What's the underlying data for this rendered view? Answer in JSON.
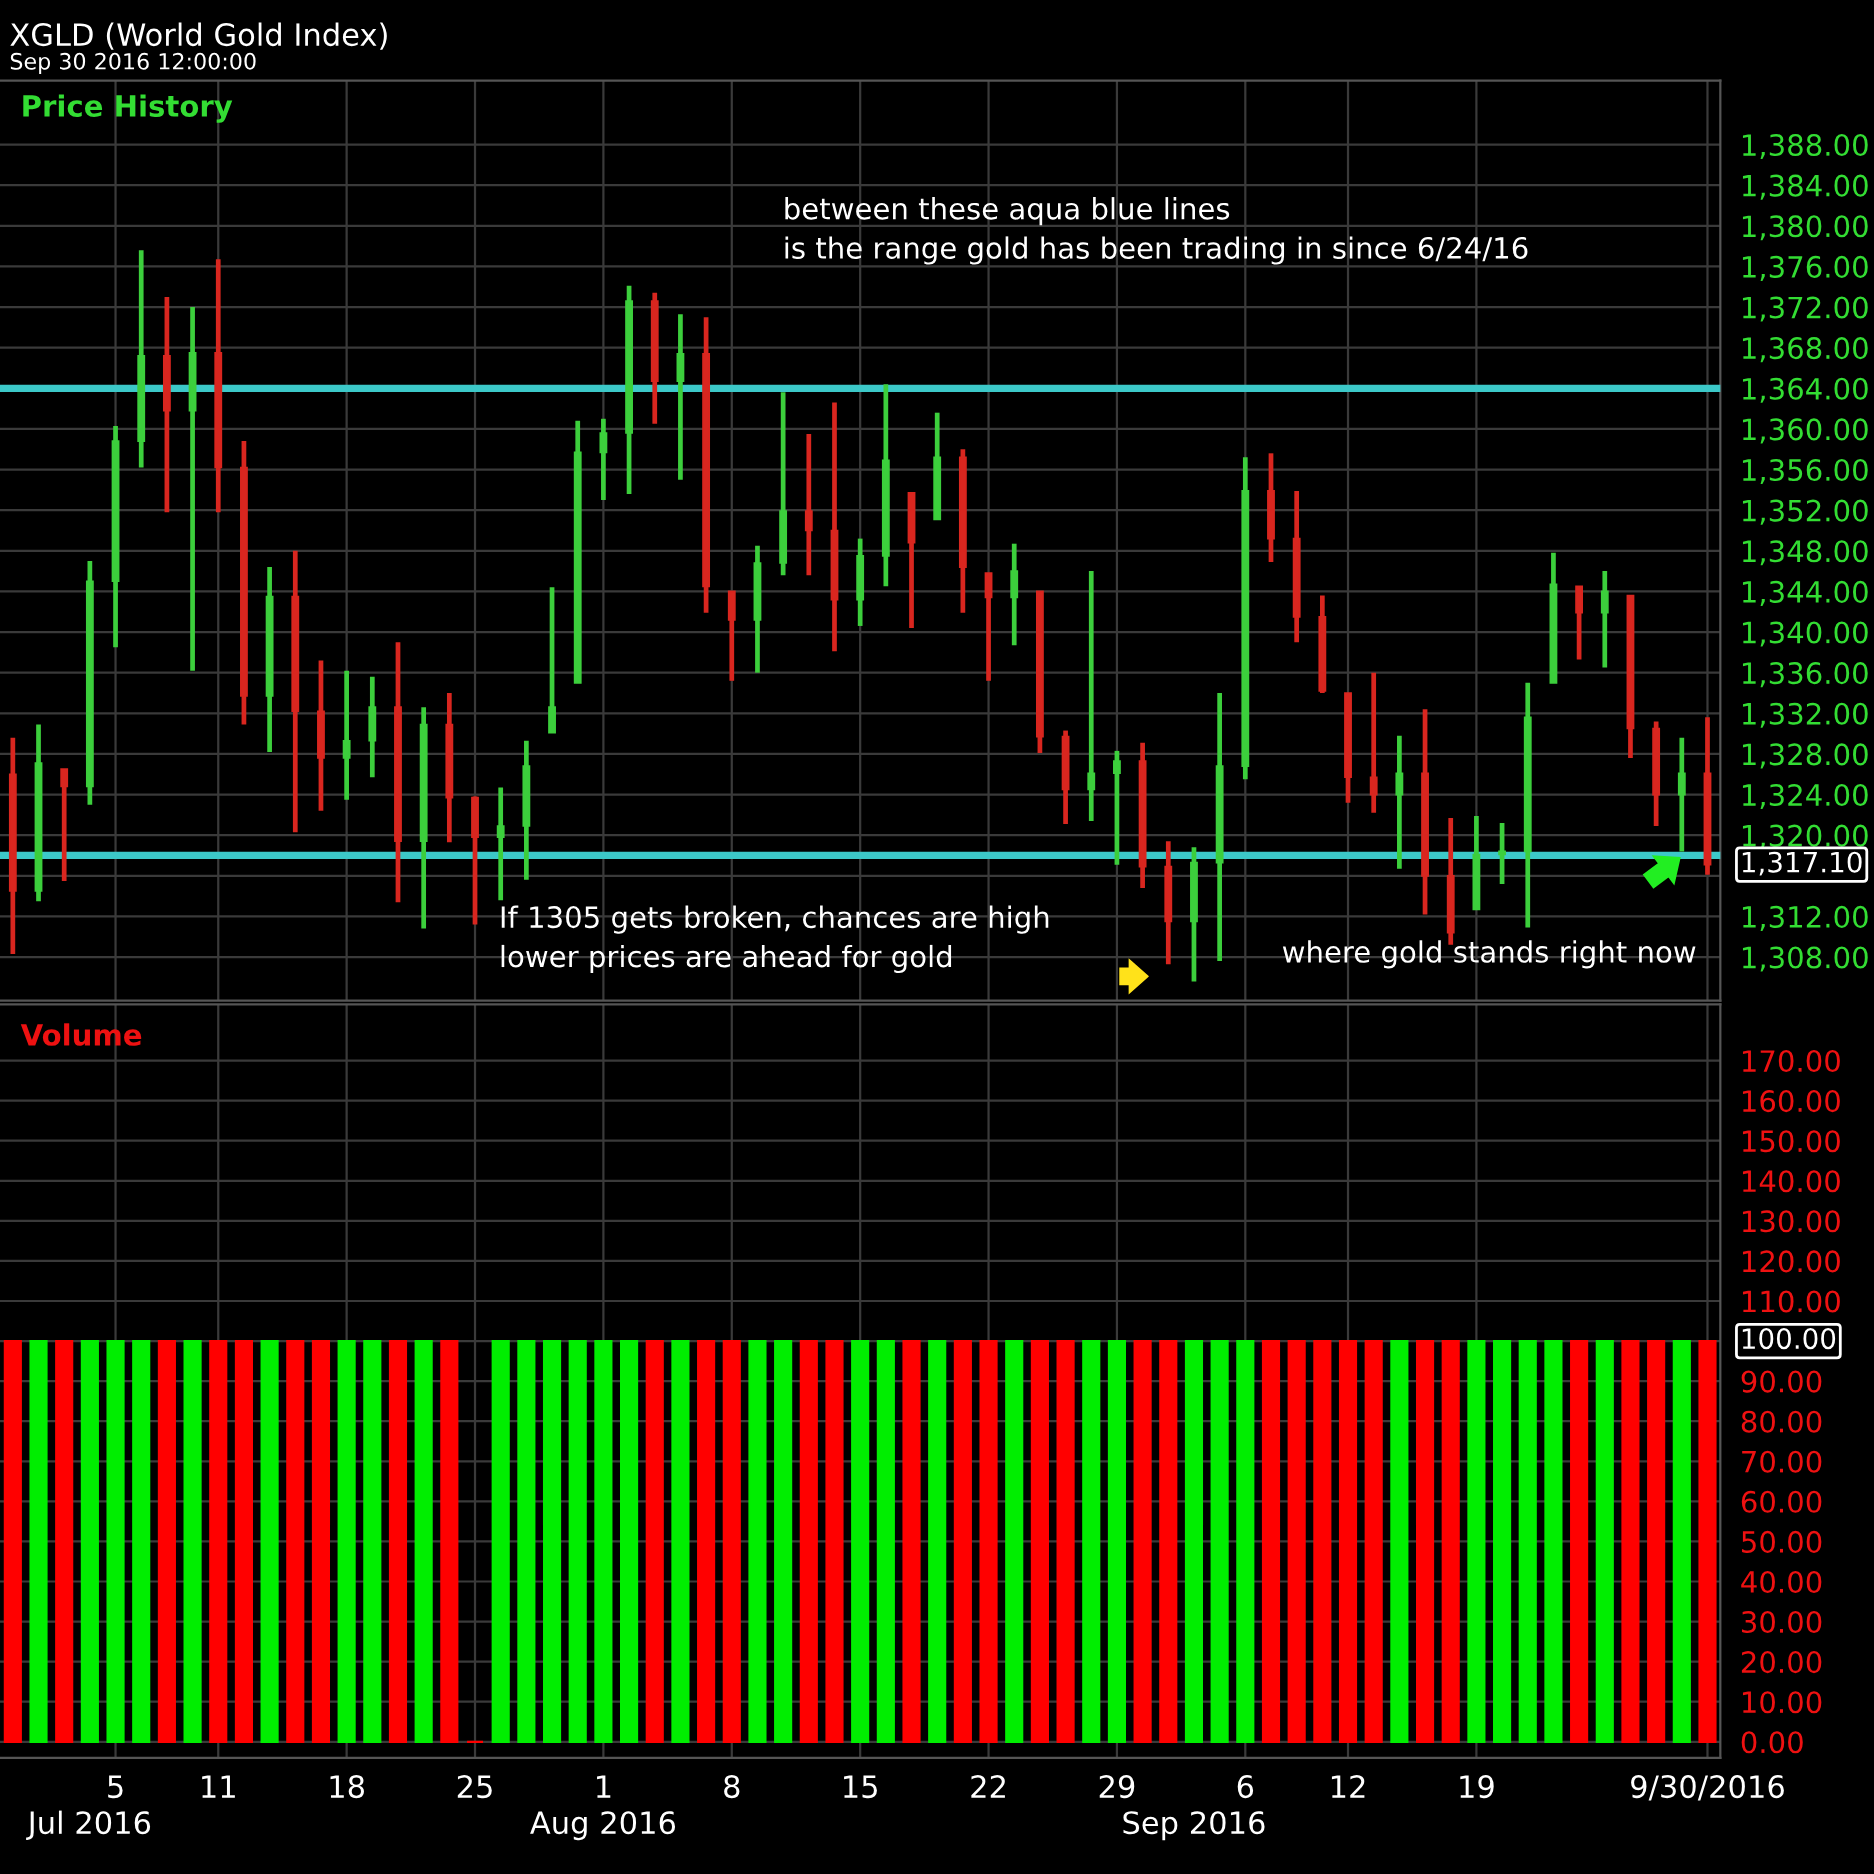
{
  "chart_data": [
    {
      "type": "candlestick",
      "title": "XGLD (World Gold Index)",
      "subtitle": "Sep 30 2016 12:00:00",
      "ylabel": "Price History",
      "categories": [
        null,
        null,
        null,
        null,
        null,
        null,
        null,
        null,
        null,
        null,
        null,
        null,
        null,
        null,
        null,
        null,
        null,
        null,
        null,
        null,
        null,
        null,
        null,
        null,
        null,
        null,
        null,
        null,
        null,
        null,
        null,
        null,
        null,
        null,
        null,
        null,
        null,
        null,
        null,
        null,
        null,
        null,
        null,
        null,
        null,
        null,
        null,
        null,
        null,
        null,
        null,
        null,
        null,
        null,
        null,
        null,
        null,
        null,
        null,
        null,
        null,
        null,
        null,
        null,
        null,
        null,
        null
      ],
      "ohlc": [
        [
          1326.0,
          1329.6,
          1308.3,
          1314.5
        ],
        [
          1314.5,
          1330.9,
          1313.5,
          1327.1
        ],
        [
          1326.5,
          1326.5,
          1315.5,
          1324.8
        ],
        [
          1324.8,
          1347.0,
          1323.0,
          1345.0
        ],
        [
          1345.0,
          1360.3,
          1338.5,
          1358.8
        ],
        [
          1358.8,
          1377.6,
          1356.2,
          1367.2
        ],
        [
          1367.2,
          1373.0,
          1351.8,
          1361.8
        ],
        [
          1361.8,
          1372.0,
          1336.2,
          1367.5
        ],
        [
          1367.5,
          1376.7,
          1351.8,
          1356.2
        ],
        [
          1356.2,
          1358.8,
          1330.9,
          1333.7
        ],
        [
          1333.7,
          1346.4,
          1328.2,
          1343.5
        ],
        [
          1343.5,
          1348.0,
          1320.3,
          1332.2
        ],
        [
          1332.2,
          1337.2,
          1322.4,
          1327.6
        ],
        [
          1327.6,
          1336.2,
          1323.5,
          1329.3
        ],
        [
          1329.3,
          1335.6,
          1325.7,
          1332.6
        ],
        [
          1332.6,
          1339.0,
          1313.4,
          1319.4
        ],
        [
          1319.4,
          1332.6,
          1310.8,
          1330.9
        ],
        [
          1330.9,
          1334.0,
          1319.3,
          1323.7
        ],
        [
          1323.7,
          1323.8,
          1311.2,
          1319.8
        ],
        [
          1319.8,
          1324.7,
          1313.6,
          1320.9
        ],
        [
          1320.9,
          1329.3,
          1315.6,
          1326.8
        ],
        [
          1330.1,
          1344.4,
          1330.1,
          1332.6
        ],
        [
          1335.0,
          1360.8,
          1335.0,
          1357.7
        ],
        [
          1357.7,
          1361.0,
          1353.0,
          1359.6
        ],
        [
          1359.6,
          1374.1,
          1353.6,
          1372.6
        ],
        [
          1372.6,
          1373.4,
          1360.5,
          1364.7
        ],
        [
          1364.7,
          1371.3,
          1355.0,
          1367.4
        ],
        [
          1367.4,
          1371.0,
          1341.9,
          1344.5
        ],
        [
          1344.0,
          1344.0,
          1335.2,
          1341.2
        ],
        [
          1341.2,
          1348.5,
          1336.0,
          1346.8
        ],
        [
          1346.8,
          1363.6,
          1345.6,
          1351.9
        ],
        [
          1351.9,
          1359.5,
          1345.6,
          1350.0
        ],
        [
          1350.0,
          1362.6,
          1338.1,
          1343.2
        ],
        [
          1343.2,
          1349.2,
          1340.6,
          1347.5
        ],
        [
          1347.5,
          1364.4,
          1344.5,
          1356.9
        ],
        [
          1353.7,
          1353.7,
          1340.4,
          1348.8
        ],
        [
          1351.1,
          1361.6,
          1351.1,
          1357.2
        ],
        [
          1357.2,
          1358.0,
          1341.9,
          1346.4
        ],
        [
          1345.8,
          1345.8,
          1335.2,
          1343.4
        ],
        [
          1343.4,
          1348.7,
          1338.7,
          1346.0
        ],
        [
          1344.0,
          1344.0,
          1328.1,
          1329.7
        ],
        [
          1329.7,
          1330.3,
          1321.1,
          1324.5
        ],
        [
          1324.5,
          1346.0,
          1321.4,
          1326.1
        ],
        [
          1326.1,
          1328.3,
          1317.1,
          1327.3
        ],
        [
          1327.3,
          1329.1,
          1314.8,
          1316.9
        ],
        [
          1316.9,
          1319.4,
          1307.3,
          1311.5
        ],
        [
          1311.5,
          1318.8,
          1305.6,
          1317.3
        ],
        [
          1317.3,
          1334.0,
          1307.6,
          1326.8
        ],
        [
          1326.8,
          1357.2,
          1325.5,
          1353.9
        ],
        [
          1353.9,
          1357.6,
          1346.9,
          1349.2
        ],
        [
          1349.2,
          1353.9,
          1339.0,
          1341.5
        ],
        [
          1341.5,
          1343.6,
          1334.0,
          1334.2
        ],
        [
          1334.0,
          1334.0,
          1323.2,
          1325.7
        ],
        [
          1325.7,
          1336.0,
          1322.2,
          1324.0
        ],
        [
          1324.0,
          1329.8,
          1316.7,
          1326.1
        ],
        [
          1326.1,
          1332.4,
          1312.2,
          1316.0
        ],
        [
          1316.0,
          1321.7,
          1309.2,
          1310.4
        ],
        [
          1312.7,
          1321.9,
          1312.7,
          1318.1
        ],
        [
          1318.1,
          1321.2,
          1315.2,
          1318.4
        ],
        [
          1318.4,
          1335.0,
          1310.9,
          1331.6
        ],
        [
          1335.0,
          1347.8,
          1335.0,
          1344.7
        ],
        [
          1344.5,
          1344.5,
          1337.3,
          1341.9
        ],
        [
          1341.9,
          1346.0,
          1336.5,
          1344.0
        ],
        [
          1343.6,
          1343.6,
          1327.6,
          1330.5
        ],
        [
          1330.5,
          1331.2,
          1320.9,
          1324.0
        ],
        [
          1324.0,
          1329.6,
          1318.4,
          1326.1
        ],
        [
          1326.1,
          1331.6,
          1316.1,
          1317.1
        ]
      ],
      "colors": [
        "#d9261f",
        "#3ccf3c",
        "#d9261f",
        "#3ccf3c",
        "#3ccf3c",
        "#3ccf3c",
        "#d9261f",
        "#3ccf3c",
        "#d9261f",
        "#d9261f",
        "#3ccf3c",
        "#d9261f",
        "#d9261f",
        "#3ccf3c",
        "#3ccf3c",
        "#d9261f",
        "#3ccf3c",
        "#d9261f",
        "#d9261f",
        "#3ccf3c",
        "#3ccf3c",
        "#3ccf3c",
        "#3ccf3c",
        "#3ccf3c",
        "#3ccf3c",
        "#d9261f",
        "#3ccf3c",
        "#d9261f",
        "#d9261f",
        "#3ccf3c",
        "#3ccf3c",
        "#d9261f",
        "#d9261f",
        "#3ccf3c",
        "#3ccf3c",
        "#d9261f",
        "#3ccf3c",
        "#d9261f",
        "#d9261f",
        "#3ccf3c",
        "#d9261f",
        "#d9261f",
        "#3ccf3c",
        "#3ccf3c",
        "#d9261f",
        "#d9261f",
        "#3ccf3c",
        "#3ccf3c",
        "#3ccf3c",
        "#d9261f",
        "#d9261f",
        "#d9261f",
        "#d9261f",
        "#d9261f",
        "#3ccf3c",
        "#d9261f",
        "#d9261f",
        "#3ccf3c",
        "#3ccf3c",
        "#3ccf3c",
        "#3ccf3c",
        "#d9261f",
        "#3ccf3c",
        "#d9261f",
        "#d9261f",
        "#3ccf3c",
        "#d9261f"
      ],
      "ylim": [
        1303.7,
        1394.3
      ],
      "yticks": [
        {
          "value": 1308,
          "label": "1,308.00"
        },
        {
          "value": 1312,
          "label": "1,312.00"
        },
        {
          "value": 1316,
          "label": null
        },
        {
          "value": 1320,
          "label": "1,320.00"
        },
        {
          "value": 1324,
          "label": "1,324.00"
        },
        {
          "value": 1328,
          "label": "1,328.00"
        },
        {
          "value": 1332,
          "label": "1,332.00"
        },
        {
          "value": 1336,
          "label": "1,336.00"
        },
        {
          "value": 1340,
          "label": "1,340.00"
        },
        {
          "value": 1344,
          "label": "1,344.00"
        },
        {
          "value": 1348,
          "label": "1,348.00"
        },
        {
          "value": 1352,
          "label": "1,352.00"
        },
        {
          "value": 1356,
          "label": "1,356.00"
        },
        {
          "value": 1360,
          "label": "1,360.00"
        },
        {
          "value": 1364,
          "label": "1,364.00"
        },
        {
          "value": 1368,
          "label": "1,368.00"
        },
        {
          "value": 1372,
          "label": "1,372.00"
        },
        {
          "value": 1376,
          "label": "1,376.00"
        },
        {
          "value": 1380,
          "label": "1,380.00"
        },
        {
          "value": 1384,
          "label": "1,384.00"
        },
        {
          "value": 1388,
          "label": "1,388.00"
        }
      ],
      "ref_lines": [
        {
          "axis": "y",
          "value": 1364,
          "color": "#3cc8c8"
        },
        {
          "axis": "y",
          "value": 1318,
          "color": "#3cc8c8"
        }
      ],
      "annotations": [
        "between these aqua blue lines\nis the range gold has been trading in since 6/24/16",
        "If 1305 gets broken, chances are high\nlower prices are ahead for gold",
        "where gold stands right now",
        "1,317.10"
      ],
      "grid": true,
      "tick_labels": "y"
    },
    {
      "type": "bar",
      "ylabel": "Volume",
      "categories": [
        null,
        null,
        null,
        null,
        "5",
        null,
        null,
        null,
        "11",
        null,
        null,
        null,
        null,
        "18",
        null,
        null,
        null,
        null,
        "25",
        null,
        null,
        null,
        null,
        "1",
        null,
        null,
        null,
        null,
        "8",
        null,
        null,
        null,
        null,
        "15",
        null,
        null,
        null,
        null,
        "22",
        null,
        null,
        null,
        null,
        "29",
        null,
        null,
        null,
        null,
        "6",
        null,
        null,
        null,
        "12",
        null,
        null,
        null,
        null,
        "19",
        null,
        null,
        null,
        null,
        null,
        null,
        null,
        null,
        "9/30/2016"
      ],
      "values": [
        100,
        100,
        100,
        100,
        100,
        100,
        100,
        100,
        100,
        100,
        100,
        100,
        100,
        100,
        100,
        100,
        100,
        100,
        0,
        100,
        100,
        100,
        100,
        100,
        100,
        100,
        100,
        100,
        100,
        100,
        100,
        100,
        100,
        100,
        100,
        100,
        100,
        100,
        100,
        100,
        100,
        100,
        100,
        100,
        100,
        100,
        100,
        100,
        100,
        100,
        100,
        100,
        100,
        100,
        100,
        100,
        100,
        100,
        100,
        100,
        100,
        100,
        100,
        100,
        100,
        100,
        100
      ],
      "colors": [
        "#ff0000",
        "#00ee00",
        "#ff0000",
        "#00ee00",
        "#00ee00",
        "#00ee00",
        "#ff0000",
        "#00ee00",
        "#ff0000",
        "#ff0000",
        "#00ee00",
        "#ff0000",
        "#ff0000",
        "#00ee00",
        "#00ee00",
        "#ff0000",
        "#00ee00",
        "#ff0000",
        "#ff0000",
        "#00ee00",
        "#00ee00",
        "#00ee00",
        "#00ee00",
        "#00ee00",
        "#00ee00",
        "#ff0000",
        "#00ee00",
        "#ff0000",
        "#ff0000",
        "#00ee00",
        "#00ee00",
        "#ff0000",
        "#ff0000",
        "#00ee00",
        "#00ee00",
        "#ff0000",
        "#00ee00",
        "#ff0000",
        "#ff0000",
        "#00ee00",
        "#ff0000",
        "#ff0000",
        "#00ee00",
        "#00ee00",
        "#ff0000",
        "#ff0000",
        "#00ee00",
        "#00ee00",
        "#00ee00",
        "#ff0000",
        "#ff0000",
        "#ff0000",
        "#ff0000",
        "#ff0000",
        "#00ee00",
        "#ff0000",
        "#ff0000",
        "#00ee00",
        "#00ee00",
        "#00ee00",
        "#00ee00",
        "#ff0000",
        "#00ee00",
        "#ff0000",
        "#ff0000",
        "#00ee00",
        "#ff0000"
      ],
      "ylim": [
        -4,
        184
      ],
      "yticks": [
        {
          "value": 0,
          "label": "0.00"
        },
        {
          "value": 10,
          "label": "10.00"
        },
        {
          "value": 20,
          "label": "20.00"
        },
        {
          "value": 30,
          "label": "30.00"
        },
        {
          "value": 40,
          "label": "40.00"
        },
        {
          "value": 50,
          "label": "50.00"
        },
        {
          "value": 60,
          "label": "60.00"
        },
        {
          "value": 70,
          "label": "70.00"
        },
        {
          "value": 80,
          "label": "80.00"
        },
        {
          "value": 90,
          "label": "90.00"
        },
        {
          "value": 100,
          "label": null
        },
        {
          "value": 110,
          "label": "110.00"
        },
        {
          "value": 120,
          "label": "120.00"
        },
        {
          "value": 130,
          "label": "130.00"
        },
        {
          "value": 140,
          "label": "140.00"
        },
        {
          "value": 150,
          "label": "150.00"
        },
        {
          "value": 160,
          "label": "160.00"
        },
        {
          "value": 170,
          "label": "170.00"
        }
      ],
      "annotations": [
        "100.00",
        "Jul 2016",
        "Aug 2016",
        "Sep 2016"
      ],
      "grid": true
    }
  ]
}
